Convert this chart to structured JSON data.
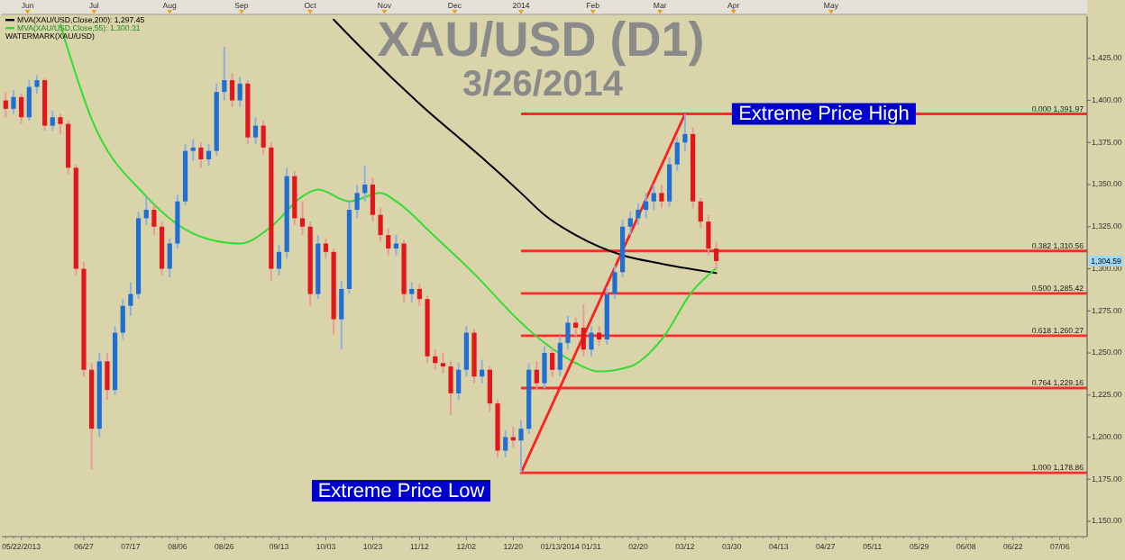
{
  "chart_data": {
    "type": "candlestick",
    "title": "XAU/USD (D1)",
    "subtitle": "3/26/2014",
    "categories": [
      null,
      null,
      "05/22/2013",
      null,
      null,
      null,
      null,
      null,
      null,
      null,
      "06/27",
      null,
      null,
      null,
      null,
      null,
      "07/17",
      null,
      null,
      null,
      null,
      null,
      "08/06",
      null,
      null,
      null,
      null,
      null,
      "08/26",
      null,
      null,
      null,
      null,
      null,
      null,
      "09/13",
      null,
      null,
      null,
      null,
      null,
      "10/03",
      null,
      null,
      null,
      null,
      null,
      "10/23",
      null,
      null,
      null,
      null,
      null,
      "11/12",
      null,
      null,
      null,
      null,
      null,
      "12/02",
      null,
      null,
      null,
      null,
      null,
      "12/20",
      null,
      null,
      null,
      null,
      null,
      "01/13/2014",
      null,
      null,
      null,
      "01/31",
      null,
      null,
      null,
      null,
      null,
      "02/20",
      null,
      null,
      null,
      null,
      null,
      "03/12",
      null,
      null,
      null,
      null,
      null,
      "03/30",
      null,
      null,
      null,
      null,
      null,
      "04/13",
      null,
      null,
      null,
      null,
      null,
      "04/27",
      null,
      null,
      null,
      null,
      null,
      "05/11",
      null,
      null,
      null,
      null,
      null,
      "05/29",
      null,
      null,
      null,
      null,
      null,
      "06/08",
      null,
      null,
      null,
      null,
      null,
      "06/22",
      null,
      null,
      null,
      null,
      null,
      "07/06",
      null,
      null,
      null
    ],
    "ohlc": [
      [
        1400,
        1405,
        1390,
        1395
      ],
      [
        1395,
        1406,
        1392,
        1402
      ],
      [
        1402,
        1404,
        1386,
        1390
      ],
      [
        1390,
        1412,
        1388,
        1408
      ],
      [
        1408,
        1415,
        1404,
        1412
      ],
      [
        1412,
        1413,
        1382,
        1385
      ],
      [
        1385,
        1394,
        1382,
        1390
      ],
      [
        1390,
        1392,
        1380,
        1386
      ],
      [
        1386,
        1388,
        1356,
        1360
      ],
      [
        1360,
        1362,
        1296,
        1300
      ],
      [
        1300,
        1304,
        1236,
        1240
      ],
      [
        1240,
        1244,
        1181,
        1205
      ],
      [
        1205,
        1250,
        1200,
        1245
      ],
      [
        1245,
        1250,
        1222,
        1228
      ],
      [
        1228,
        1266,
        1225,
        1262
      ],
      [
        1262,
        1282,
        1258,
        1278
      ],
      [
        1278,
        1292,
        1272,
        1285
      ],
      [
        1285,
        1334,
        1282,
        1330
      ],
      [
        1330,
        1343,
        1326,
        1335
      ],
      [
        1335,
        1338,
        1320,
        1325
      ],
      [
        1325,
        1328,
        1296,
        1300
      ],
      [
        1300,
        1318,
        1295,
        1315
      ],
      [
        1315,
        1344,
        1312,
        1340
      ],
      [
        1340,
        1374,
        1338,
        1370
      ],
      [
        1370,
        1377,
        1364,
        1372
      ],
      [
        1372,
        1375,
        1360,
        1365
      ],
      [
        1365,
        1374,
        1361,
        1370
      ],
      [
        1370,
        1410,
        1367,
        1405
      ],
      [
        1405,
        1432,
        1400,
        1412
      ],
      [
        1412,
        1416,
        1396,
        1400
      ],
      [
        1400,
        1414,
        1396,
        1410
      ],
      [
        1410,
        1412,
        1374,
        1378
      ],
      [
        1378,
        1390,
        1374,
        1385
      ],
      [
        1385,
        1388,
        1368,
        1372
      ],
      [
        1372,
        1375,
        1293,
        1300
      ],
      [
        1300,
        1314,
        1296,
        1310
      ],
      [
        1310,
        1360,
        1306,
        1355
      ],
      [
        1355,
        1358,
        1326,
        1330
      ],
      [
        1330,
        1340,
        1320,
        1325
      ],
      [
        1325,
        1328,
        1278,
        1285
      ],
      [
        1285,
        1320,
        1282,
        1315
      ],
      [
        1315,
        1318,
        1306,
        1310
      ],
      [
        1310,
        1312,
        1261,
        1270
      ],
      [
        1270,
        1293,
        1252,
        1288
      ],
      [
        1288,
        1340,
        1285,
        1335
      ],
      [
        1335,
        1350,
        1330,
        1345
      ],
      [
        1345,
        1361,
        1340,
        1350
      ],
      [
        1350,
        1354,
        1328,
        1332
      ],
      [
        1332,
        1336,
        1316,
        1320
      ],
      [
        1320,
        1324,
        1308,
        1312
      ],
      [
        1312,
        1320,
        1308,
        1315
      ],
      [
        1315,
        1317,
        1280,
        1285
      ],
      [
        1285,
        1292,
        1280,
        1288
      ],
      [
        1288,
        1291,
        1278,
        1282
      ],
      [
        1282,
        1284,
        1244,
        1248
      ],
      [
        1248,
        1252,
        1240,
        1244
      ],
      [
        1244,
        1250,
        1238,
        1242
      ],
      [
        1242,
        1245,
        1213,
        1226
      ],
      [
        1226,
        1244,
        1222,
        1240
      ],
      [
        1240,
        1266,
        1236,
        1262
      ],
      [
        1262,
        1264,
        1232,
        1236
      ],
      [
        1236,
        1246,
        1232,
        1240
      ],
      [
        1240,
        1242,
        1215,
        1220
      ],
      [
        1220,
        1222,
        1188,
        1192
      ],
      [
        1192,
        1204,
        1188,
        1200
      ],
      [
        1200,
        1206,
        1194,
        1198
      ],
      [
        1198,
        1210,
        1178.86,
        1205
      ],
      [
        1205,
        1244,
        1202,
        1240
      ],
      [
        1240,
        1245,
        1228,
        1232
      ],
      [
        1232,
        1254,
        1229,
        1250
      ],
      [
        1250,
        1253,
        1236,
        1240
      ],
      [
        1240,
        1260,
        1236,
        1256
      ],
      [
        1256,
        1272,
        1252,
        1268
      ],
      [
        1268,
        1271,
        1260,
        1265
      ],
      [
        1265,
        1279,
        1248,
        1252
      ],
      [
        1252,
        1266,
        1248,
        1262
      ],
      [
        1262,
        1266,
        1254,
        1258
      ],
      [
        1258,
        1289,
        1255,
        1285
      ],
      [
        1285,
        1302,
        1282,
        1298
      ],
      [
        1298,
        1329,
        1295,
        1325
      ],
      [
        1325,
        1334,
        1320,
        1330
      ],
      [
        1330,
        1339,
        1326,
        1335
      ],
      [
        1335,
        1345,
        1330,
        1340
      ],
      [
        1340,
        1350,
        1335,
        1345
      ],
      [
        1345,
        1350,
        1336,
        1340
      ],
      [
        1340,
        1366,
        1337,
        1362
      ],
      [
        1362,
        1378,
        1358,
        1375
      ],
      [
        1375,
        1391.97,
        1370,
        1380
      ],
      [
        1380,
        1384,
        1336,
        1340
      ],
      [
        1340,
        1342,
        1324,
        1328
      ],
      [
        1328,
        1332,
        1308,
        1312
      ],
      [
        1312,
        1316,
        1300,
        1304.59
      ],
      null,
      null,
      null,
      null,
      null,
      null,
      null,
      null,
      null,
      null,
      null,
      null,
      null,
      null,
      null,
      null,
      null,
      null,
      null,
      null,
      null,
      null,
      null,
      null,
      null,
      null,
      null,
      null,
      null,
      null,
      null,
      null,
      null,
      null,
      null,
      null,
      null,
      null,
      null,
      null,
      null,
      null,
      null,
      null,
      null,
      null,
      null
    ],
    "series": [
      {
        "type": "line",
        "name": "MVA(XAU/USD,Close,200): 1,297.45",
        "color": "#000000",
        "values": [
          null,
          null,
          null,
          null,
          null,
          null,
          null,
          null,
          null,
          null,
          null,
          null,
          null,
          null,
          null,
          null,
          null,
          null,
          null,
          null,
          null,
          null,
          null,
          null,
          null,
          null,
          null,
          null,
          null,
          null,
          null,
          null,
          null,
          null,
          null,
          null,
          null,
          null,
          null,
          null,
          null,
          null,
          1448,
          null,
          null,
          null,
          1429,
          null,
          null,
          null,
          null,
          null,
          null,
          1398,
          null,
          null,
          null,
          null,
          null,
          null,
          null,
          1366,
          null,
          null,
          null,
          null,
          1345,
          null,
          null,
          1332,
          null,
          null,
          null,
          1320,
          null,
          null,
          null,
          null,
          null,
          1308,
          null,
          null,
          null,
          null,
          1303,
          null,
          null,
          null,
          null,
          null,
          null,
          1297.45,
          null,
          null,
          null,
          null,
          null,
          null,
          null,
          null,
          null,
          null,
          null,
          null,
          null,
          null,
          null,
          null,
          null,
          null,
          null,
          null,
          null,
          null,
          null,
          null,
          null,
          null,
          null,
          null,
          null,
          null,
          null,
          null,
          null,
          null,
          null,
          null,
          null,
          null,
          null,
          null,
          null,
          null,
          null,
          null,
          null,
          null,
          null
        ]
      },
      {
        "type": "line",
        "name": "MVA(XAU/USD,Close,55): 1,300.31",
        "color": "#33dd33",
        "values": [
          null,
          null,
          null,
          null,
          null,
          null,
          null,
          1445,
          null,
          null,
          null,
          1389,
          null,
          null,
          null,
          null,
          null,
          null,
          1343,
          null,
          null,
          null,
          null,
          null,
          null,
          1319,
          null,
          null,
          null,
          null,
          1315,
          null,
          null,
          null,
          1325,
          null,
          null,
          null,
          1343,
          null,
          1347,
          null,
          null,
          null,
          1340,
          null,
          null,
          null,
          1345,
          null,
          1340,
          null,
          null,
          null,
          null,
          1319,
          null,
          null,
          null,
          null,
          1297,
          null,
          null,
          null,
          null,
          null,
          1268,
          null,
          null,
          1256,
          null,
          null,
          null,
          1244,
          null,
          null,
          1239,
          null,
          null,
          null,
          1242,
          null,
          null,
          null,
          1258,
          null,
          null,
          null,
          1287,
          null,
          null,
          1300.31,
          null,
          null,
          null,
          null,
          null,
          null,
          null,
          null,
          null,
          null,
          null,
          null,
          null,
          null,
          null,
          null,
          null,
          null,
          null,
          null,
          null,
          null,
          null,
          null,
          null,
          null,
          null,
          null,
          null,
          null,
          null,
          null,
          null,
          null,
          null,
          null,
          null,
          null,
          null,
          null,
          null,
          null,
          null,
          null,
          null,
          null,
          null
        ]
      },
      {
        "type": "line",
        "color": "#ff2020",
        "values": [
          null,
          null,
          null,
          null,
          null,
          null,
          null,
          null,
          null,
          null,
          null,
          null,
          null,
          null,
          null,
          null,
          null,
          null,
          null,
          null,
          null,
          null,
          null,
          null,
          null,
          null,
          null,
          null,
          null,
          null,
          null,
          null,
          null,
          null,
          null,
          null,
          null,
          null,
          null,
          null,
          null,
          null,
          null,
          null,
          null,
          null,
          null,
          null,
          null,
          null,
          null,
          null,
          null,
          null,
          null,
          null,
          null,
          null,
          null,
          null,
          null,
          null,
          null,
          null,
          null,
          null,
          1178.86,
          null,
          null,
          null,
          null,
          null,
          null,
          null,
          null,
          null,
          null,
          null,
          null,
          null,
          null,
          null,
          null,
          null,
          null,
          null,
          null,
          1391.97,
          null,
          null,
          null,
          null,
          null,
          null,
          null,
          null,
          null,
          null,
          null,
          null,
          null,
          null,
          null,
          null,
          null,
          null,
          null,
          null,
          null,
          null,
          null,
          null,
          null,
          null,
          null,
          null,
          null,
          null,
          null,
          null,
          null,
          null,
          null,
          null,
          null,
          null,
          null,
          null,
          null,
          null,
          null,
          null,
          null,
          null,
          null,
          null,
          null,
          null,
          null
        ]
      }
    ],
    "ref_lines": [
      {
        "axis": "y",
        "value": 1391.97,
        "label": "0.000 1,391.97",
        "color": "#ff2a2a"
      },
      {
        "axis": "y",
        "value": 1310.56,
        "label": "0.382 1,310.56",
        "color": "#ff2a2a"
      },
      {
        "axis": "y",
        "value": 1285.42,
        "label": "0.500 1,285.42",
        "color": "#ff2a2a"
      },
      {
        "axis": "y",
        "value": 1260.27,
        "label": "0.618 1,260.27",
        "color": "#ff2a2a"
      },
      {
        "axis": "y",
        "value": 1229.16,
        "label": "0.764 1,229.16",
        "color": "#ff2a2a"
      },
      {
        "axis": "y",
        "value": 1178.86,
        "label": "1.000 1,178.86",
        "color": "#ff2a2a"
      }
    ],
    "annotations": [
      {
        "text": "Extreme Price High",
        "y": 1391.97
      },
      "Extreme Price Low",
      {
        "text": "1,304.59",
        "y": 1304.59
      },
      "WATERMARK(XAU/USD)",
      "Jun",
      "Jul",
      "Aug",
      "Sep",
      "Oct",
      "Nov",
      "Dec",
      "2014",
      "Feb",
      "Mar",
      "Apr",
      "May"
    ],
    "ylim": [
      1142,
      1450
    ],
    "yticks": [
      {
        "value": 1150,
        "label": "1,150.00"
      },
      {
        "value": 1175,
        "label": "1,175.00"
      },
      {
        "value": 1200,
        "label": "1,200.00"
      },
      {
        "value": 1225,
        "label": "1,225.00"
      },
      {
        "value": 1250,
        "label": "1,250.00"
      },
      {
        "value": 1275,
        "label": "1,275.00"
      },
      {
        "value": 1300,
        "label": "1,300.00"
      },
      {
        "value": 1325,
        "label": "1,325.00"
      },
      {
        "value": 1350,
        "label": "1,350.00"
      },
      {
        "value": 1375,
        "label": "1,375.00"
      },
      {
        "value": 1400,
        "label": "1,400.00"
      },
      {
        "value": 1425,
        "label": "1,425.00"
      }
    ],
    "legend": "top left",
    "grid": false
  }
}
